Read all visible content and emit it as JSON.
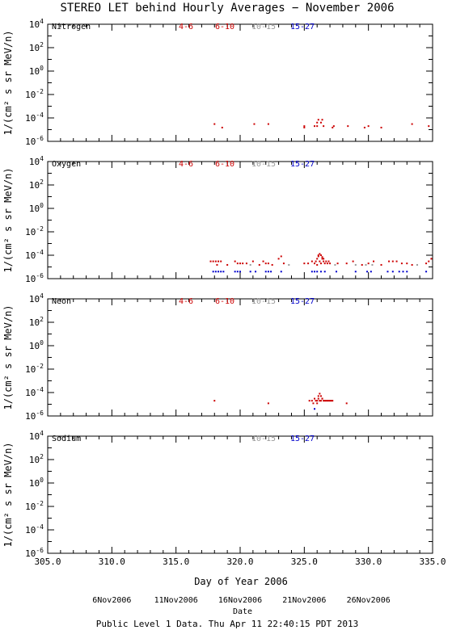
{
  "title": "STEREO LET behind Hourly Averages − November 2006",
  "xlabel": "Day of Year 2006",
  "ylabel": "1/(cm² s sr MeV/n)",
  "footer": "Public Level 1 Data. Thu Apr 11 22:40:15 PDT 2013",
  "date_axis_label": "Date",
  "date_ticks": [
    {
      "label": "6Nov2006",
      "doy": 310
    },
    {
      "label": "11Nov2006",
      "doy": 315
    },
    {
      "label": "16Nov2006",
      "doy": 320
    },
    {
      "label": "21Nov2006",
      "doy": 325
    },
    {
      "label": "26Nov2006",
      "doy": 330
    }
  ],
  "colors": {
    "4-6": "#cc0000",
    "6-10": "#cc0000",
    "10-15": "#999999",
    "15-27": "#0000cc"
  },
  "chart_data": [
    {
      "type": "scatter",
      "panel": "Nitrogen",
      "label": "Nitrogen",
      "legend": [
        "4-6",
        "6-10",
        "10-15",
        "15-27"
      ],
      "xlim": [
        305,
        335
      ],
      "ylim_log10": [
        -6,
        4
      ],
      "yscale": "log",
      "x_ticks": [
        "305.0",
        "310.0",
        "315.0",
        "320.0",
        "325.0",
        "330.0",
        "335.0"
      ],
      "series": [
        {
          "name": "6-10",
          "color": "#cc0000",
          "x": [
            318.0,
            318.6,
            321.1,
            322.2,
            325.0,
            325.0,
            325.8,
            326.0,
            326.1,
            326.3,
            326.4,
            326.5,
            326.0,
            327.2,
            327.3,
            328.4,
            329.7,
            330.0,
            331.0,
            333.4,
            334.7
          ],
          "y": [
            3e-05,
            1.5e-05,
            3e-05,
            3e-05,
            2e-05,
            1.5e-05,
            2e-05,
            4e-05,
            7e-05,
            4e-05,
            7e-05,
            2e-05,
            2e-05,
            1.5e-05,
            2e-05,
            2e-05,
            1.5e-05,
            2e-05,
            1.5e-05,
            3e-05,
            2e-05
          ]
        }
      ]
    },
    {
      "type": "scatter",
      "panel": "Oxygen",
      "label": "Oxygen",
      "legend": [
        "4-6",
        "6-10",
        "10-15",
        "15-27"
      ],
      "xlim": [
        305,
        335
      ],
      "ylim_log10": [
        -6,
        4
      ],
      "yscale": "log",
      "x_ticks": [
        "305.0",
        "310.0",
        "315.0",
        "320.0",
        "325.0",
        "330.0",
        "335.0"
      ],
      "series": [
        {
          "name": "6-10",
          "color": "#cc0000",
          "x": [
            317.7,
            317.9,
            318.1,
            318.3,
            318.5,
            318.2,
            319.0,
            319.6,
            319.8,
            320.0,
            320.2,
            320.5,
            321.0,
            321.5,
            321.8,
            322.0,
            322.2,
            322.5,
            323.0,
            323.2,
            323.4,
            325.0,
            325.3,
            325.6,
            325.8,
            325.9,
            326.0,
            326.1,
            326.2,
            326.3,
            326.4,
            326.5,
            326.6,
            326.7,
            326.8,
            326.9,
            327.0,
            326.1,
            326.3,
            326.5,
            326.2,
            326.4,
            326.0,
            327.6,
            328.3,
            328.8,
            329.5,
            330.0,
            330.4,
            331.0,
            331.6,
            331.9,
            332.2,
            332.6,
            333.0,
            333.4,
            334.5,
            334.7,
            334.9
          ],
          "y": [
            3e-05,
            3e-05,
            3e-05,
            3e-05,
            3e-05,
            1.5e-05,
            1.5e-05,
            3e-05,
            2e-05,
            2e-05,
            2e-05,
            2e-05,
            3e-05,
            1.5e-05,
            3e-05,
            2e-05,
            2e-05,
            1.5e-05,
            5e-05,
            8e-05,
            2e-05,
            2e-05,
            2e-05,
            3e-05,
            2e-05,
            3e-05,
            5e-05,
            8e-05,
            3e-05,
            2e-05,
            5e-05,
            3e-05,
            2e-05,
            3e-05,
            2e-05,
            3e-05,
            2e-05,
            0.0001,
            0.0001,
            5e-05,
            0.00013,
            7e-05,
            1.5e-05,
            2e-05,
            2e-05,
            3e-05,
            1.5e-05,
            2e-05,
            3e-05,
            1.5e-05,
            3e-05,
            3e-05,
            3e-05,
            2e-05,
            2e-05,
            1.5e-05,
            2e-05,
            3e-05,
            5e-05
          ]
        },
        {
          "name": "10-15",
          "color": "#999999",
          "x": [
            320.8,
            323.8,
            327.4,
            329.0,
            329.8,
            330.3,
            333.8
          ],
          "y": [
            1.5e-05,
            1.5e-05,
            1.5e-05,
            1.5e-05,
            1.5e-05,
            1.5e-05,
            1.5e-05
          ]
        },
        {
          "name": "15-27",
          "color": "#0000cc",
          "x": [
            317.9,
            318.1,
            318.3,
            318.5,
            318.7,
            319.6,
            319.8,
            320.0,
            320.8,
            321.2,
            322.0,
            322.2,
            322.4,
            323.2,
            325.6,
            325.8,
            326.0,
            326.3,
            326.6,
            327.5,
            329.0,
            329.9,
            330.2,
            331.5,
            331.9,
            332.4,
            332.7,
            333.0,
            334.5
          ],
          "y": [
            4e-06,
            4e-06,
            4e-06,
            4e-06,
            4e-06,
            4e-06,
            4e-06,
            4e-06,
            4e-06,
            4e-06,
            4e-06,
            4e-06,
            4e-06,
            4e-06,
            4e-06,
            4e-06,
            4e-06,
            4e-06,
            4e-06,
            4e-06,
            4e-06,
            4e-06,
            4e-06,
            4e-06,
            4e-06,
            4e-06,
            4e-06,
            4e-06,
            4e-06
          ]
        }
      ]
    },
    {
      "type": "scatter",
      "panel": "Neon",
      "label": "Neon",
      "legend": [
        "4-6",
        "6-10",
        "10-15",
        "15-27"
      ],
      "xlim": [
        305,
        335
      ],
      "ylim_log10": [
        -6,
        4
      ],
      "yscale": "log",
      "x_ticks": [
        "305.0",
        "310.0",
        "315.0",
        "320.0",
        "325.0",
        "330.0",
        "335.0"
      ],
      "series": [
        {
          "name": "6-10",
          "color": "#cc0000",
          "x": [
            318.0,
            322.2,
            325.4,
            325.6,
            325.8,
            325.9,
            326.0,
            326.1,
            326.2,
            326.3,
            326.4,
            326.5,
            326.6,
            326.7,
            326.8,
            326.9,
            327.0,
            327.1,
            327.2,
            326.1,
            326.3,
            326.2,
            326.4,
            326.0,
            325.7,
            328.3
          ],
          "y": [
            2e-05,
            1.2e-05,
            2e-05,
            2e-05,
            3e-05,
            2e-05,
            2e-05,
            3e-05,
            2e-05,
            2e-05,
            3e-05,
            2e-05,
            2e-05,
            2e-05,
            2e-05,
            2e-05,
            2e-05,
            2e-05,
            2e-05,
            5e-05,
            5e-05,
            8e-05,
            3e-05,
            1.2e-05,
            1.2e-05,
            1.2e-05
          ]
        },
        {
          "name": "15-27",
          "color": "#0000cc",
          "x": [
            325.8
          ],
          "y": [
            4e-06
          ]
        }
      ]
    },
    {
      "type": "scatter",
      "panel": "Sodium",
      "label": "Sodium",
      "legend": [
        "10-15",
        "15-27"
      ],
      "xlim": [
        305,
        335
      ],
      "ylim_log10": [
        -6,
        4
      ],
      "yscale": "log",
      "x_ticks": [
        "305.0",
        "310.0",
        "315.0",
        "320.0",
        "325.0",
        "330.0",
        "335.0"
      ],
      "series": []
    }
  ]
}
